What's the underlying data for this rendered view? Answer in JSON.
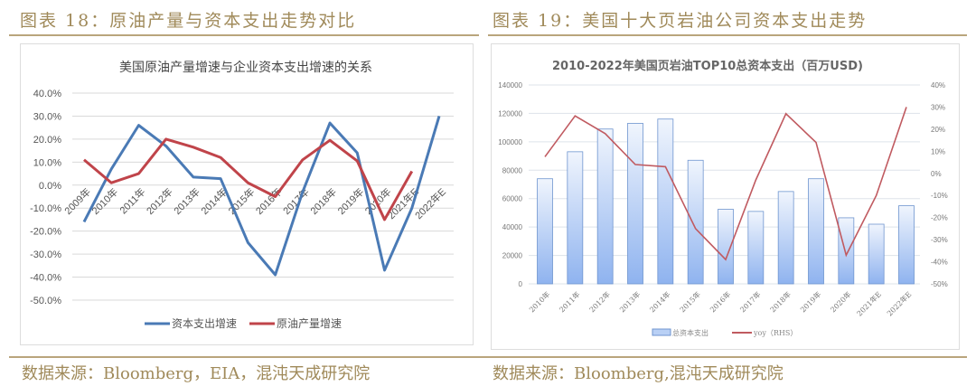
{
  "left": {
    "header": "图表 18：原油产量与资本支出走势对比",
    "source": "数据来源：Bloomberg，EIA，混沌天成研究院"
  },
  "right": {
    "header": "图表 19：美国十大页岩油公司资本支出走势",
    "source": "数据来源：Bloomberg,混沌天成研究院"
  },
  "chart_data": [
    {
      "type": "line",
      "title": "美国原油产量增速与企业资本支出增速的关系",
      "categories": [
        "2009年",
        "2010年",
        "2011年",
        "2012年",
        "2013年",
        "2014年",
        "2015年",
        "2016年",
        "2017年",
        "2018年",
        "2019年",
        "2020年",
        "2021年E",
        "2022年E"
      ],
      "yticks": [
        "40.0%",
        "30.0%",
        "20.0%",
        "10.0%",
        "0.0%",
        "-10.0%",
        "-20.0%",
        "-30.0%",
        "-40.0%",
        "-50.0%"
      ],
      "ylim": [
        -50,
        40
      ],
      "series": [
        {
          "name": "资本支出增速",
          "color": "#4a7ab5",
          "values": [
            -16,
            7,
            26,
            17,
            3.5,
            2.8,
            -25,
            -39,
            -3,
            27,
            14,
            -37,
            -10,
            30
          ]
        },
        {
          "name": "原油产量增速",
          "color": "#c0444a",
          "values": [
            11,
            1,
            5,
            20,
            16.5,
            12,
            1,
            -5,
            11,
            19.5,
            10.5,
            -15,
            6,
            null
          ]
        }
      ],
      "legend": "bottom"
    },
    {
      "type": "bar",
      "title": "2010-2022年美国页岩油TOP10总资本支出（百万USD)",
      "categories": [
        "2010年",
        "2011年",
        "2012年",
        "2013年",
        "2014年",
        "2015年",
        "2016年",
        "2017年",
        "2018年",
        "2019年",
        "2020年",
        "2021年E",
        "2022年E"
      ],
      "yticks": [
        "140000",
        "120000",
        "100000",
        "80000",
        "60000",
        "40000",
        "20000",
        "0"
      ],
      "y2ticks": [
        "40%",
        "30%",
        "20%",
        "10%",
        "0%",
        "-10%",
        "-20%",
        "-30%",
        "-40%",
        "-50%"
      ],
      "ylim": [
        0,
        140000
      ],
      "y2lim": [
        -50,
        40
      ],
      "series": [
        {
          "name": "总资本支出",
          "type": "bar",
          "color": "#9dbcf0",
          "values": [
            74000,
            93000,
            109000,
            113000,
            116000,
            87000,
            52500,
            51000,
            65000,
            74000,
            46500,
            42000,
            55000
          ]
        },
        {
          "name": "yoy（RHS）",
          "type": "line",
          "color": "#c05a60",
          "values": [
            7.5,
            26,
            18,
            4,
            3,
            -25,
            -39,
            -3,
            27,
            14,
            -37,
            -10,
            30
          ]
        }
      ],
      "legend": "bottom"
    }
  ]
}
